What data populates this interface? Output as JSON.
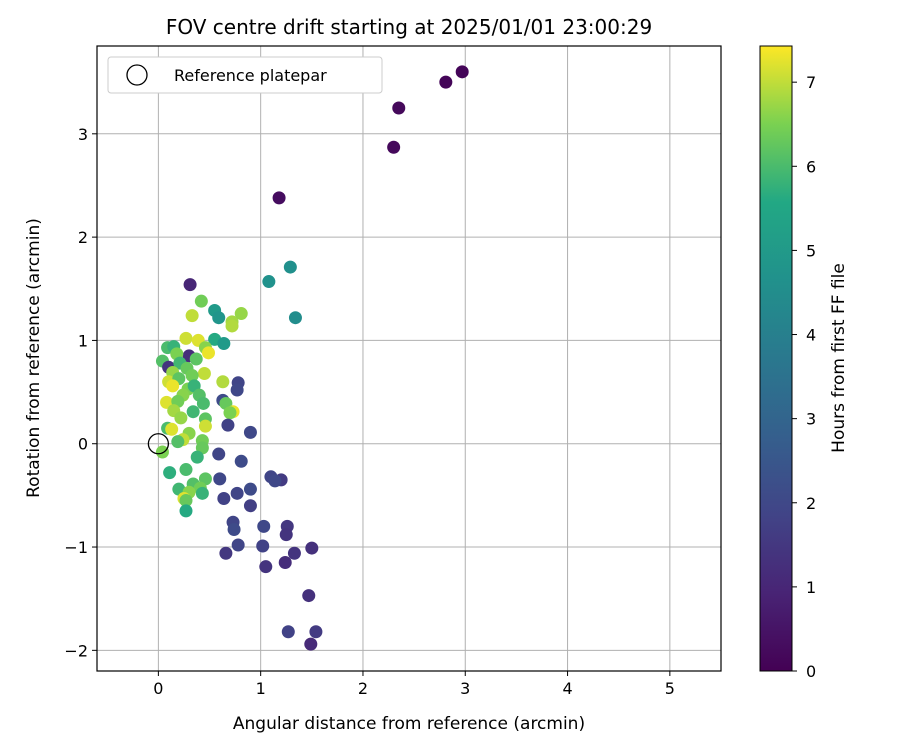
{
  "chart_data": {
    "type": "scatter",
    "title": "FOV centre drift starting at 2025/01/01 23:00:29",
    "xlabel": "Angular distance from reference (arcmin)",
    "ylabel": "Rotation from reference (arcmin)",
    "xlim": [
      -0.6,
      5.5
    ],
    "ylim": [
      -2.2,
      3.85
    ],
    "xticks": [
      0,
      1,
      2,
      3,
      4,
      5
    ],
    "yticks": [
      -2,
      -1,
      0,
      1,
      2,
      3
    ],
    "grid": true,
    "legend": {
      "placement": "top-left",
      "entries": [
        "Reference platepar"
      ]
    },
    "reference_point": {
      "label": "Reference platepar",
      "x": 0,
      "y": 0
    },
    "colorbar": {
      "label": "Hours from first FF file",
      "min": 0,
      "max": 7.43,
      "ticks": [
        0,
        1,
        2,
        3,
        4,
        5,
        6,
        7
      ],
      "colormap": "viridis"
    },
    "points": [
      {
        "x": 2.97,
        "y": 3.6,
        "c": 0.1
      },
      {
        "x": 2.81,
        "y": 3.5,
        "c": 0.1
      },
      {
        "x": 2.35,
        "y": 3.25,
        "c": 0.2
      },
      {
        "x": 2.3,
        "y": 2.87,
        "c": 0.2
      },
      {
        "x": 1.18,
        "y": 2.38,
        "c": 0.3
      },
      {
        "x": 1.29,
        "y": 1.71,
        "c": 4.6
      },
      {
        "x": 1.08,
        "y": 1.57,
        "c": 4.7
      },
      {
        "x": 1.34,
        "y": 1.22,
        "c": 4.5
      },
      {
        "x": 0.31,
        "y": 1.54,
        "c": 1.0
      },
      {
        "x": 0.42,
        "y": 1.38,
        "c": 6.4
      },
      {
        "x": 0.55,
        "y": 1.29,
        "c": 5.0
      },
      {
        "x": 0.59,
        "y": 1.22,
        "c": 4.8
      },
      {
        "x": 0.33,
        "y": 1.24,
        "c": 7.0
      },
      {
        "x": 0.72,
        "y": 1.18,
        "c": 6.8
      },
      {
        "x": 0.81,
        "y": 1.26,
        "c": 6.7
      },
      {
        "x": 0.72,
        "y": 1.14,
        "c": 6.9
      },
      {
        "x": 0.55,
        "y": 1.01,
        "c": 5.6
      },
      {
        "x": 0.64,
        "y": 0.97,
        "c": 5.0
      },
      {
        "x": 0.27,
        "y": 1.02,
        "c": 7.1
      },
      {
        "x": 0.39,
        "y": 1.0,
        "c": 7.2
      },
      {
        "x": 0.46,
        "y": 0.93,
        "c": 6.6
      },
      {
        "x": 0.09,
        "y": 0.93,
        "c": 6.0
      },
      {
        "x": 0.15,
        "y": 0.94,
        "c": 5.8
      },
      {
        "x": 0.3,
        "y": 0.85,
        "c": 1.2
      },
      {
        "x": 0.49,
        "y": 0.88,
        "c": 7.3
      },
      {
        "x": 0.37,
        "y": 0.82,
        "c": 6.2
      },
      {
        "x": 0.18,
        "y": 0.87,
        "c": 6.5
      },
      {
        "x": 0.04,
        "y": 0.8,
        "c": 6.1
      },
      {
        "x": 0.1,
        "y": 0.74,
        "c": 1.4
      },
      {
        "x": 0.21,
        "y": 0.78,
        "c": 5.9
      },
      {
        "x": 0.28,
        "y": 0.73,
        "c": 6.3
      },
      {
        "x": 0.14,
        "y": 0.69,
        "c": 6.7
      },
      {
        "x": 0.45,
        "y": 0.68,
        "c": 7.0
      },
      {
        "x": 0.33,
        "y": 0.66,
        "c": 6.4
      },
      {
        "x": 0.1,
        "y": 0.6,
        "c": 7.1
      },
      {
        "x": 0.2,
        "y": 0.63,
        "c": 6.2
      },
      {
        "x": 0.63,
        "y": 0.6,
        "c": 6.9
      },
      {
        "x": 0.78,
        "y": 0.59,
        "c": 1.9
      },
      {
        "x": 0.77,
        "y": 0.52,
        "c": 2.0
      },
      {
        "x": 0.14,
        "y": 0.56,
        "c": 7.3
      },
      {
        "x": 0.29,
        "y": 0.53,
        "c": 6.5
      },
      {
        "x": 0.35,
        "y": 0.56,
        "c": 5.8
      },
      {
        "x": 0.24,
        "y": 0.47,
        "c": 6.6
      },
      {
        "x": 0.4,
        "y": 0.47,
        "c": 6.1
      },
      {
        "x": 0.08,
        "y": 0.4,
        "c": 7.2
      },
      {
        "x": 0.19,
        "y": 0.41,
        "c": 6.4
      },
      {
        "x": 0.44,
        "y": 0.39,
        "c": 6.0
      },
      {
        "x": 0.63,
        "y": 0.42,
        "c": 2.1
      },
      {
        "x": 0.66,
        "y": 0.39,
        "c": 6.3
      },
      {
        "x": 0.15,
        "y": 0.32,
        "c": 6.8
      },
      {
        "x": 0.34,
        "y": 0.31,
        "c": 5.9
      },
      {
        "x": 0.73,
        "y": 0.31,
        "c": 7.3
      },
      {
        "x": 0.7,
        "y": 0.3,
        "c": 6.5
      },
      {
        "x": 0.22,
        "y": 0.25,
        "c": 6.7
      },
      {
        "x": 0.46,
        "y": 0.24,
        "c": 6.2
      },
      {
        "x": 0.46,
        "y": 0.17,
        "c": 7.1
      },
      {
        "x": 0.68,
        "y": 0.18,
        "c": 1.8
      },
      {
        "x": 0.9,
        "y": 0.11,
        "c": 2.0
      },
      {
        "x": 0.09,
        "y": 0.15,
        "c": 6.0
      },
      {
        "x": 0.13,
        "y": 0.14,
        "c": 7.2
      },
      {
        "x": 0.3,
        "y": 0.1,
        "c": 6.6
      },
      {
        "x": 0.24,
        "y": 0.04,
        "c": 7.0
      },
      {
        "x": 0.43,
        "y": 0.03,
        "c": 6.4
      },
      {
        "x": 0.19,
        "y": 0.02,
        "c": 6.1
      },
      {
        "x": 0.04,
        "y": -0.08,
        "c": 6.5
      },
      {
        "x": 0.43,
        "y": -0.04,
        "c": 6.3
      },
      {
        "x": 0.59,
        "y": -0.1,
        "c": 1.9
      },
      {
        "x": 0.38,
        "y": -0.13,
        "c": 5.8
      },
      {
        "x": 0.81,
        "y": -0.17,
        "c": 2.1
      },
      {
        "x": 0.27,
        "y": -0.25,
        "c": 6.0
      },
      {
        "x": 0.11,
        "y": -0.28,
        "c": 5.7
      },
      {
        "x": 0.6,
        "y": -0.34,
        "c": 2.0
      },
      {
        "x": 0.46,
        "y": -0.34,
        "c": 6.2
      },
      {
        "x": 1.1,
        "y": -0.32,
        "c": 1.9
      },
      {
        "x": 1.2,
        "y": -0.35,
        "c": 1.6
      },
      {
        "x": 1.14,
        "y": -0.36,
        "c": 2.0
      },
      {
        "x": 0.34,
        "y": -0.39,
        "c": 6.1
      },
      {
        "x": 0.2,
        "y": -0.44,
        "c": 5.9
      },
      {
        "x": 0.41,
        "y": -0.43,
        "c": 6.4
      },
      {
        "x": 0.3,
        "y": -0.47,
        "c": 6.6
      },
      {
        "x": 0.43,
        "y": -0.48,
        "c": 5.8
      },
      {
        "x": 0.77,
        "y": -0.48,
        "c": 1.9
      },
      {
        "x": 0.9,
        "y": -0.44,
        "c": 2.1
      },
      {
        "x": 0.64,
        "y": -0.53,
        "c": 1.8
      },
      {
        "x": 0.25,
        "y": -0.53,
        "c": 7.2
      },
      {
        "x": 0.27,
        "y": -0.55,
        "c": 6.3
      },
      {
        "x": 0.9,
        "y": -0.6,
        "c": 1.7
      },
      {
        "x": 0.27,
        "y": -0.65,
        "c": 5.6
      },
      {
        "x": 0.73,
        "y": -0.76,
        "c": 1.9
      },
      {
        "x": 1.03,
        "y": -0.8,
        "c": 2.0
      },
      {
        "x": 1.26,
        "y": -0.8,
        "c": 1.5
      },
      {
        "x": 0.74,
        "y": -0.83,
        "c": 2.1
      },
      {
        "x": 1.25,
        "y": -0.88,
        "c": 1.4
      },
      {
        "x": 0.78,
        "y": -0.98,
        "c": 1.9
      },
      {
        "x": 1.02,
        "y": -0.99,
        "c": 1.8
      },
      {
        "x": 1.5,
        "y": -1.01,
        "c": 1.3
      },
      {
        "x": 1.33,
        "y": -1.06,
        "c": 1.4
      },
      {
        "x": 0.66,
        "y": -1.06,
        "c": 1.5
      },
      {
        "x": 1.24,
        "y": -1.15,
        "c": 1.2
      },
      {
        "x": 1.05,
        "y": -1.19,
        "c": 1.4
      },
      {
        "x": 1.47,
        "y": -1.47,
        "c": 1.3
      },
      {
        "x": 1.27,
        "y": -1.82,
        "c": 1.8
      },
      {
        "x": 1.54,
        "y": -1.82,
        "c": 1.6
      },
      {
        "x": 1.49,
        "y": -1.94,
        "c": 1.1
      }
    ]
  }
}
